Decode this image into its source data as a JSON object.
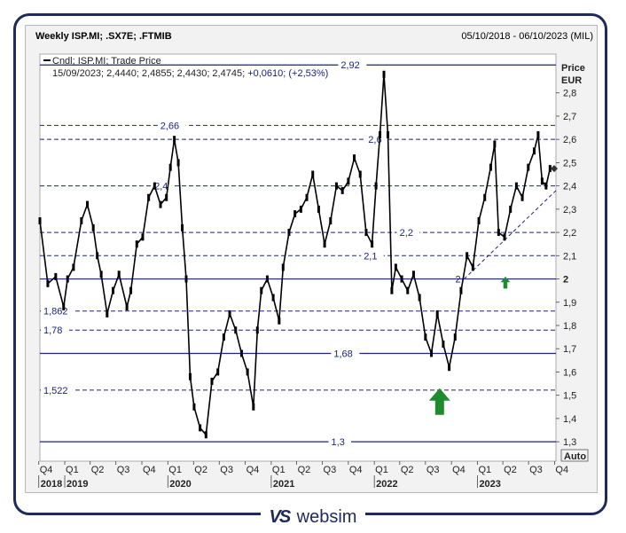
{
  "header": {
    "title": "Weekly ISP.MI; .SX7E; .FTMIB",
    "date_range": "05/10/2018 - 06/10/2023 (MIL)"
  },
  "legend": {
    "series_line": "Cndl; ISP.MI; Trade Price",
    "ohlc_prefix": "15/09/2023; 2,4440; 2,4855; 2,4430; 2,4745;",
    "change": "+0,0610; (+2,53%)"
  },
  "axis": {
    "price_label": "Price",
    "currency_label": "EUR",
    "auto_button": "Auto"
  },
  "brand": {
    "mark": "VS",
    "name": "websim"
  },
  "colors": {
    "levels": "#1a237e",
    "candles": "#000000",
    "arrow": "#1e8c2e",
    "background": "#f2f2f2"
  },
  "chart_data": {
    "type": "candlestick",
    "title": "Weekly ISP.MI; .SX7E; .FTMIB",
    "ylabel": "Price EUR",
    "ylim": [
      1.27,
      2.94
    ],
    "y_ticks": [
      "2,8",
      "2,7",
      "2,6",
      "2,5",
      "2,4",
      "2,3",
      "2,2",
      "2,1",
      "2",
      "1,9",
      "1,8",
      "1,7",
      "1,6",
      "1,5",
      "1,4",
      "1,3"
    ],
    "y_tick_values": [
      2.8,
      2.7,
      2.6,
      2.5,
      2.4,
      2.3,
      2.2,
      2.1,
      2.0,
      1.9,
      1.8,
      1.7,
      1.6,
      1.5,
      1.4,
      1.3
    ],
    "x_ticks": [
      "Q4",
      "Q1",
      "Q2",
      "Q3",
      "Q4",
      "Q1",
      "Q2",
      "Q3",
      "Q4",
      "Q1",
      "Q2",
      "Q3",
      "Q4",
      "Q1",
      "Q2",
      "Q3",
      "Q4",
      "Q1",
      "Q2",
      "Q3",
      "Q4"
    ],
    "x_tick_dates": [
      "2018-10-01",
      "2019-01-01",
      "2019-04-01",
      "2019-07-01",
      "2019-10-01",
      "2020-01-01",
      "2020-04-01",
      "2020-07-01",
      "2020-10-01",
      "2021-01-01",
      "2021-04-01",
      "2021-07-01",
      "2021-10-01",
      "2022-01-01",
      "2022-04-01",
      "2022-07-01",
      "2022-10-01",
      "2023-01-01",
      "2023-04-01",
      "2023-07-01",
      "2023-10-01"
    ],
    "years": [
      {
        "label": "2018",
        "date": "2018-10-01"
      },
      {
        "label": "2019",
        "date": "2019-01-01"
      },
      {
        "label": "2020",
        "date": "2020-01-01"
      },
      {
        "label": "2021",
        "date": "2021-01-01"
      },
      {
        "label": "2022",
        "date": "2022-01-01"
      },
      {
        "label": "2023",
        "date": "2023-01-01"
      }
    ],
    "x_range": [
      "2018-10-05",
      "2023-10-06"
    ],
    "levels": [
      {
        "value": 2.92,
        "label": "2,92",
        "style": "solid",
        "label_date": "2021-10-15"
      },
      {
        "value": 2.66,
        "label": "2,66",
        "style": "dashed",
        "label_date": "2020-01-15"
      },
      {
        "value": 2.6,
        "label": "2,6",
        "style": "dashed",
        "label_date": "2022-01-10"
      },
      {
        "value": 2.4,
        "label": "2,4",
        "style": "dashed",
        "label_date": "2019-12-15"
      },
      {
        "value": 2.2,
        "label": "2,2",
        "style": "dashed",
        "label_date": "2022-05-01"
      },
      {
        "value": 2.1,
        "label": "2,1",
        "style": "dashed",
        "label_date": "2021-12-25"
      },
      {
        "value": 2.0,
        "label": "2",
        "style": "solid",
        "label_date": ""
      },
      {
        "value": 1.862,
        "label": "1,862",
        "style": "dashed",
        "label_date": "2018-10-05"
      },
      {
        "value": 1.78,
        "label": "1,78",
        "style": "dashed",
        "label_date": "2018-10-05"
      },
      {
        "value": 1.68,
        "label": "1,68",
        "style": "solid",
        "label_date": "2021-09-20"
      },
      {
        "value": 1.522,
        "label": "1,522",
        "style": "dashed",
        "label_date": "2018-10-05"
      },
      {
        "value": 1.3,
        "label": "1,3",
        "style": "solid",
        "label_date": "2021-09-01"
      }
    ],
    "trendline": {
      "label": "2",
      "start": {
        "date": "2022-11-15",
        "value": 2.0
      },
      "end": {
        "date": "2023-10-06",
        "value": 2.38
      }
    },
    "last_price": 2.4745,
    "arrows": [
      {
        "date": "2022-08-20",
        "value": 1.53,
        "size": "large"
      },
      {
        "date": "2023-04-10",
        "value": 2.01,
        "size": "small"
      }
    ],
    "series": [
      {
        "name": "ISP.MI",
        "points": [
          {
            "date": "2018-10-05",
            "value": 2.25
          },
          {
            "date": "2018-11-02",
            "value": 1.98
          },
          {
            "date": "2018-11-30",
            "value": 2.01
          },
          {
            "date": "2018-12-28",
            "value": 1.88
          },
          {
            "date": "2019-01-11",
            "value": 2.0
          },
          {
            "date": "2019-02-01",
            "value": 2.05
          },
          {
            "date": "2019-03-01",
            "value": 2.25
          },
          {
            "date": "2019-03-22",
            "value": 2.32
          },
          {
            "date": "2019-04-12",
            "value": 2.22
          },
          {
            "date": "2019-04-26",
            "value": 2.1
          },
          {
            "date": "2019-05-10",
            "value": 2.02
          },
          {
            "date": "2019-05-31",
            "value": 1.85
          },
          {
            "date": "2019-06-21",
            "value": 1.95
          },
          {
            "date": "2019-07-12",
            "value": 2.02
          },
          {
            "date": "2019-08-09",
            "value": 1.88
          },
          {
            "date": "2019-08-23",
            "value": 1.95
          },
          {
            "date": "2019-09-13",
            "value": 2.15
          },
          {
            "date": "2019-10-04",
            "value": 2.18
          },
          {
            "date": "2019-10-25",
            "value": 2.35
          },
          {
            "date": "2019-11-15",
            "value": 2.4
          },
          {
            "date": "2019-12-06",
            "value": 2.32
          },
          {
            "date": "2019-12-27",
            "value": 2.35
          },
          {
            "date": "2020-01-10",
            "value": 2.48
          },
          {
            "date": "2020-01-24",
            "value": 2.6
          },
          {
            "date": "2020-02-07",
            "value": 2.5
          },
          {
            "date": "2020-02-21",
            "value": 2.22
          },
          {
            "date": "2020-03-06",
            "value": 2.0
          },
          {
            "date": "2020-03-20",
            "value": 1.58
          },
          {
            "date": "2020-04-03",
            "value": 1.45
          },
          {
            "date": "2020-04-24",
            "value": 1.36
          },
          {
            "date": "2020-05-15",
            "value": 1.33
          },
          {
            "date": "2020-06-05",
            "value": 1.56
          },
          {
            "date": "2020-06-26",
            "value": 1.6
          },
          {
            "date": "2020-07-17",
            "value": 1.75
          },
          {
            "date": "2020-08-07",
            "value": 1.85
          },
          {
            "date": "2020-08-28",
            "value": 1.78
          },
          {
            "date": "2020-09-18",
            "value": 1.68
          },
          {
            "date": "2020-10-09",
            "value": 1.6
          },
          {
            "date": "2020-10-30",
            "value": 1.45
          },
          {
            "date": "2020-11-13",
            "value": 1.78
          },
          {
            "date": "2020-11-27",
            "value": 1.95
          },
          {
            "date": "2020-12-18",
            "value": 2.0
          },
          {
            "date": "2021-01-08",
            "value": 1.92
          },
          {
            "date": "2021-01-29",
            "value": 1.82
          },
          {
            "date": "2021-02-12",
            "value": 2.05
          },
          {
            "date": "2021-03-05",
            "value": 2.2
          },
          {
            "date": "2021-03-26",
            "value": 2.28
          },
          {
            "date": "2021-04-16",
            "value": 2.3
          },
          {
            "date": "2021-05-07",
            "value": 2.35
          },
          {
            "date": "2021-05-28",
            "value": 2.45
          },
          {
            "date": "2021-06-18",
            "value": 2.3
          },
          {
            "date": "2021-07-09",
            "value": 2.15
          },
          {
            "date": "2021-07-30",
            "value": 2.25
          },
          {
            "date": "2021-08-20",
            "value": 2.4
          },
          {
            "date": "2021-09-10",
            "value": 2.38
          },
          {
            "date": "2021-10-01",
            "value": 2.42
          },
          {
            "date": "2021-10-22",
            "value": 2.52
          },
          {
            "date": "2021-11-12",
            "value": 2.45
          },
          {
            "date": "2021-12-03",
            "value": 2.2
          },
          {
            "date": "2021-12-24",
            "value": 2.15
          },
          {
            "date": "2022-01-07",
            "value": 2.4
          },
          {
            "date": "2022-01-21",
            "value": 2.62
          },
          {
            "date": "2022-02-04",
            "value": 2.88
          },
          {
            "date": "2022-02-18",
            "value": 2.62
          },
          {
            "date": "2022-03-04",
            "value": 1.95
          },
          {
            "date": "2022-03-18",
            "value": 2.05
          },
          {
            "date": "2022-04-08",
            "value": 2.0
          },
          {
            "date": "2022-04-29",
            "value": 1.95
          },
          {
            "date": "2022-05-20",
            "value": 2.02
          },
          {
            "date": "2022-06-10",
            "value": 1.92
          },
          {
            "date": "2022-07-01",
            "value": 1.75
          },
          {
            "date": "2022-07-22",
            "value": 1.68
          },
          {
            "date": "2022-08-12",
            "value": 1.85
          },
          {
            "date": "2022-09-02",
            "value": 1.72
          },
          {
            "date": "2022-09-23",
            "value": 1.62
          },
          {
            "date": "2022-10-14",
            "value": 1.75
          },
          {
            "date": "2022-11-04",
            "value": 1.95
          },
          {
            "date": "2022-11-25",
            "value": 2.1
          },
          {
            "date": "2022-12-16",
            "value": 2.05
          },
          {
            "date": "2023-01-06",
            "value": 2.25
          },
          {
            "date": "2023-01-27",
            "value": 2.35
          },
          {
            "date": "2023-02-17",
            "value": 2.48
          },
          {
            "date": "2023-03-03",
            "value": 2.58
          },
          {
            "date": "2023-03-17",
            "value": 2.2
          },
          {
            "date": "2023-04-07",
            "value": 2.18
          },
          {
            "date": "2023-04-28",
            "value": 2.3
          },
          {
            "date": "2023-05-19",
            "value": 2.4
          },
          {
            "date": "2023-06-09",
            "value": 2.35
          },
          {
            "date": "2023-06-30",
            "value": 2.48
          },
          {
            "date": "2023-07-21",
            "value": 2.55
          },
          {
            "date": "2023-08-04",
            "value": 2.62
          },
          {
            "date": "2023-08-18",
            "value": 2.42
          },
          {
            "date": "2023-09-01",
            "value": 2.4
          },
          {
            "date": "2023-09-15",
            "value": 2.4745
          }
        ]
      }
    ]
  }
}
